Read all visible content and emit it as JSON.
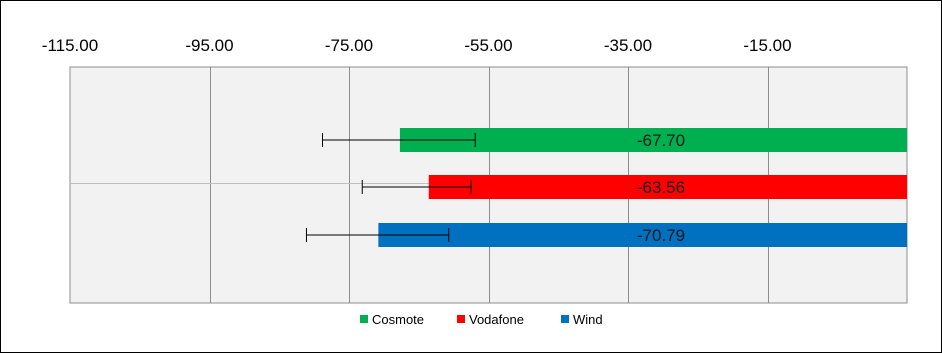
{
  "chart_data": {
    "type": "bar",
    "orientation": "horizontal",
    "title": "",
    "xlabel": "",
    "ylabel": "",
    "xlim": [
      -115,
      5
    ],
    "x_ticks": [
      -115,
      -95,
      -75,
      -55,
      -35,
      -15
    ],
    "x_tick_labels": [
      "-115.00",
      "-95.00",
      "-75.00",
      "-55.00",
      "-35.00",
      "-15.00"
    ],
    "x_axis_position": "top",
    "grid": true,
    "legend": "bottom",
    "series": [
      {
        "name": "Cosmote",
        "value": -67.7,
        "label": "-67.70",
        "error_low": -78.8,
        "error_high": -56.9,
        "color": "#00b050"
      },
      {
        "name": "Vodafone",
        "value": -63.56,
        "label": "-63.56",
        "error_low": -73.1,
        "error_high": -57.5,
        "color": "#ff0000"
      },
      {
        "name": "Wind",
        "value": -70.79,
        "label": "-70.79",
        "error_low": -81.1,
        "error_high": -60.7,
        "color": "#0070c0"
      }
    ]
  }
}
